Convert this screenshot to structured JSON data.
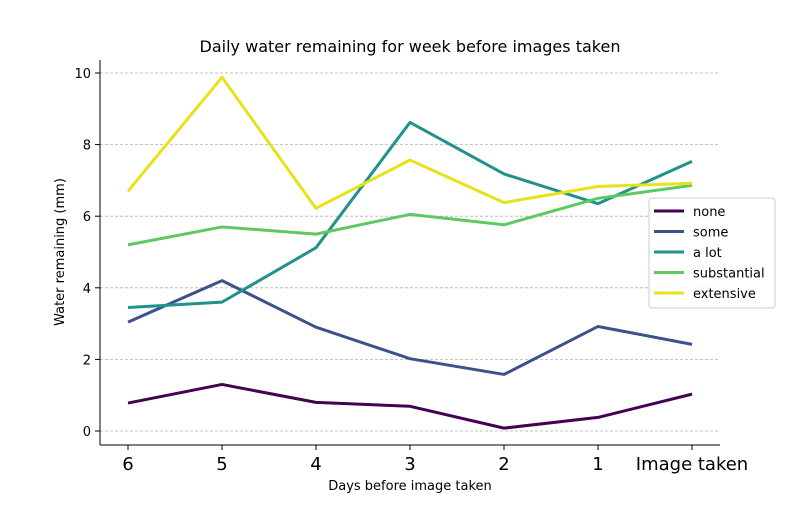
{
  "chart_data": {
    "type": "line",
    "title": "Daily water remaining for week before images taken",
    "xlabel": "Days before image taken",
    "ylabel": "Water remaining (mm)",
    "categories": [
      "6",
      "5",
      "4",
      "3",
      "2",
      "1",
      "Image taken"
    ],
    "yticks": [
      0,
      2,
      4,
      6,
      8,
      10
    ],
    "ylim": [
      -0.75,
      10.7
    ],
    "grid": "horizontal dashed",
    "legend_position": "right",
    "series": [
      {
        "name": "none",
        "color": "#440154",
        "values": [
          0.78,
          1.3,
          0.8,
          0.69,
          0.08,
          0.38,
          1.03
        ]
      },
      {
        "name": "some",
        "color": "#3b528b",
        "values": [
          3.04,
          4.2,
          2.9,
          2.02,
          1.58,
          2.92,
          2.42
        ]
      },
      {
        "name": "a lot",
        "color": "#21918c",
        "values": [
          3.45,
          3.6,
          5.12,
          8.62,
          7.18,
          6.35,
          7.53
        ]
      },
      {
        "name": "substantial",
        "color": "#5ec962",
        "values": [
          5.2,
          5.7,
          5.5,
          6.05,
          5.76,
          6.5,
          6.86
        ]
      },
      {
        "name": "extensive",
        "color": "#e8e21c",
        "values": [
          6.7,
          9.88,
          6.22,
          7.57,
          6.38,
          6.83,
          6.92
        ]
      }
    ]
  }
}
